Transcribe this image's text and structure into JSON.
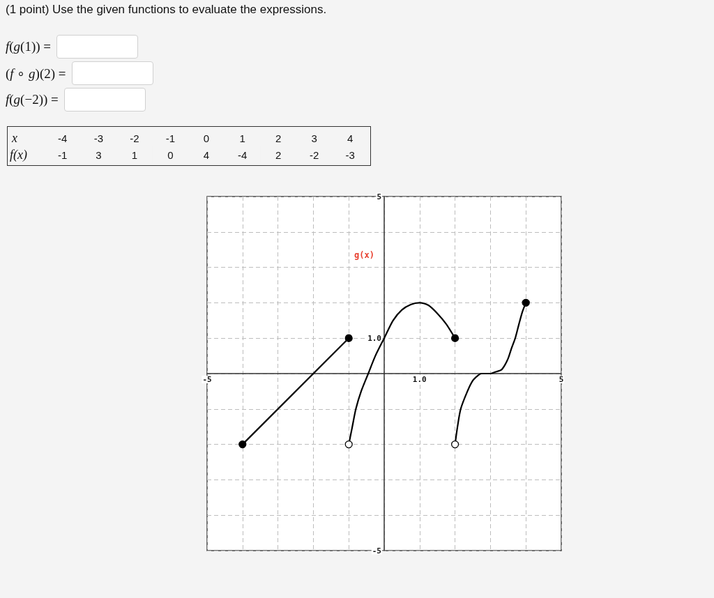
{
  "chart_data": [
    {
      "type": "other",
      "title": "(1 point) Use the given functions to evaluate the expressions.",
      "annotations": [
        "f(g(1)) =",
        "(f ∘ g)(2) =",
        "f(g(−2)) ="
      ]
    },
    {
      "type": "heatmap",
      "xlabel": "x",
      "categories": [
        "-4",
        "-3",
        "-2",
        "-1",
        "0",
        "1",
        "2",
        "3",
        "4"
      ],
      "y_categories": [
        "f(x)"
      ],
      "cells": [
        [
          -1,
          3,
          1,
          0,
          4,
          -4,
          2,
          -2,
          -3
        ]
      ],
      "data_labels": true
    },
    {
      "type": "line",
      "xlim": [
        -5,
        5
      ],
      "ylim": [
        -5,
        5
      ],
      "xticks": [
        -5,
        {
          "value": -4,
          "label": null
        },
        {
          "value": -3,
          "label": null
        },
        {
          "value": -2,
          "label": null
        },
        {
          "value": -1,
          "label": null
        },
        {
          "value": 0,
          "label": null
        },
        {
          "value": 1,
          "label": "1.0"
        },
        {
          "value": 2,
          "label": null
        },
        {
          "value": 3,
          "label": null
        },
        {
          "value": 4,
          "label": null
        },
        5
      ],
      "yticks": [
        -5,
        {
          "value": -4,
          "label": null
        },
        {
          "value": -3,
          "label": null
        },
        {
          "value": -2,
          "label": null
        },
        {
          "value": -1,
          "label": null
        },
        {
          "value": 0,
          "label": null
        },
        {
          "value": 1,
          "label": "1.0"
        },
        {
          "value": 2,
          "label": null
        },
        {
          "value": 3,
          "label": null
        },
        {
          "value": 4,
          "label": null
        },
        5
      ],
      "grid": true,
      "annotations": [
        "g(x)"
      ],
      "series": [
        {
          "color": "#000000",
          "marker": "none",
          "x": [
            -4,
            -1
          ],
          "values": [
            -2,
            1
          ]
        },
        {
          "color": "#000000",
          "marker": "none",
          "x": [
            -1,
            -0.9,
            -0.8,
            -0.65,
            -0.45,
            -0.25,
            0,
            0.25,
            0.5,
            0.75,
            1,
            1.25,
            1.5,
            1.75,
            2
          ],
          "values": [
            -2,
            -1.5,
            -1,
            -0.5,
            0,
            0.5,
            1,
            1.5,
            1.8,
            1.95,
            2,
            1.93,
            1.7,
            1.4,
            1
          ]
        },
        {
          "color": "#000000",
          "marker": "none",
          "x": [
            2,
            2.07,
            2.16,
            2.35,
            2.5,
            2.65,
            2.75,
            3,
            3.15,
            3.3,
            3.4,
            3.5,
            3.6,
            3.7,
            3.8,
            3.9,
            4
          ],
          "values": [
            -2,
            -1.5,
            -1,
            -0.5,
            -0.2,
            -0.05,
            0,
            0,
            0.05,
            0.1,
            0.23,
            0.43,
            0.73,
            1,
            1.38,
            1.74,
            2
          ]
        },
        {
          "type": "scatter",
          "color": "#000000",
          "marker": "circle",
          "x": [
            -4,
            -1,
            2,
            4
          ],
          "values": [
            -2,
            1,
            1,
            2
          ]
        },
        {
          "type": "scatter",
          "color": "#ffffff",
          "marker": "circle",
          "x": [
            -1,
            2
          ],
          "values": [
            -2,
            -2
          ]
        }
      ]
    }
  ]
}
